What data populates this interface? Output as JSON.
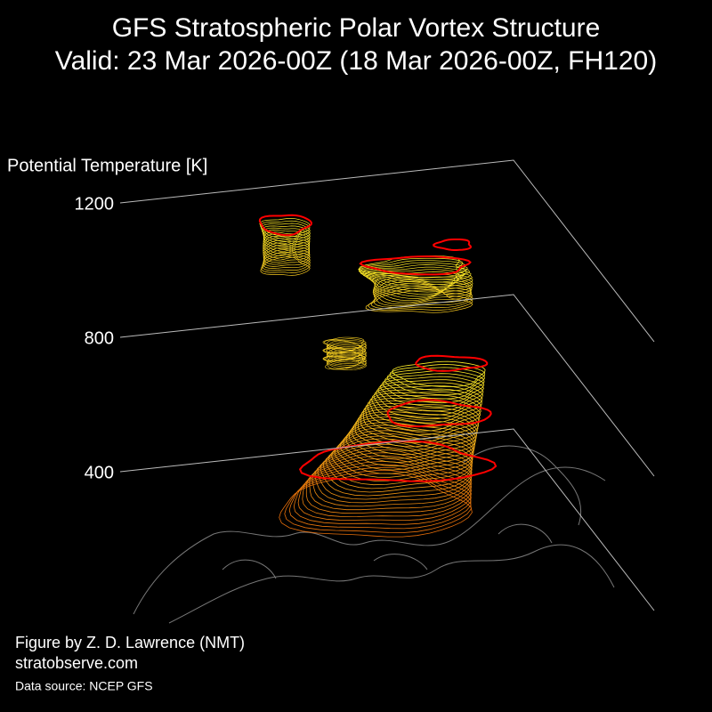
{
  "chart_data": {
    "type": "vortex-3d",
    "title": [
      "GFS Stratospheric Polar Vortex Structure",
      "Valid: 23 Mar 2026-00Z  (18 Mar 2026-00Z, FH120)"
    ],
    "y_label": "Potential Temperature [K]",
    "ylim": [
      400,
      1200
    ],
    "yticks": [
      400,
      800,
      1200
    ],
    "credit": "Figure by Z. D. Lawrence (NMT)",
    "website": "stratobserve.com",
    "source": "Data source: NCEP GFS"
  }
}
